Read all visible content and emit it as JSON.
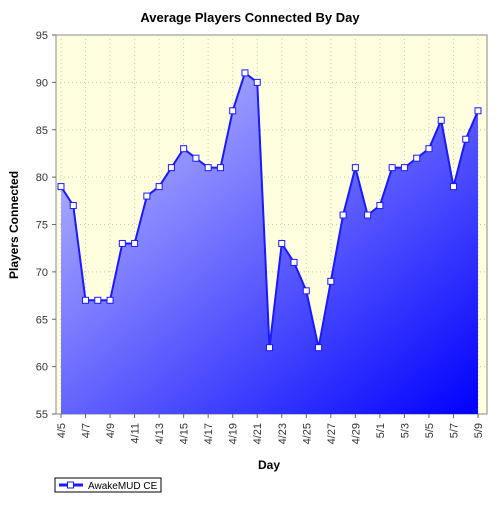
{
  "chart_data": {
    "type": "area",
    "title": "Average Players Connected By Day",
    "xlabel": "Day",
    "ylabel": "Players Connected",
    "ylim": [
      55,
      95
    ],
    "yticks": [
      55,
      60,
      65,
      70,
      75,
      80,
      85,
      90,
      95
    ],
    "grid": true,
    "legend_position": "bottom-left",
    "categories": [
      "4/5",
      "4/6",
      "4/7",
      "4/8",
      "4/9",
      "4/10",
      "4/11",
      "4/12",
      "4/13",
      "4/14",
      "4/15",
      "4/16",
      "4/17",
      "4/18",
      "4/19",
      "4/20",
      "4/21",
      "4/22",
      "4/23",
      "4/24",
      "4/25",
      "4/26",
      "4/27",
      "4/28",
      "4/29",
      "4/30",
      "5/1",
      "5/2",
      "5/3",
      "5/4",
      "5/5",
      "5/6",
      "5/7",
      "5/8",
      "5/9"
    ],
    "xtick_labels": [
      "4/5",
      "4/7",
      "4/9",
      "4/11",
      "4/13",
      "4/15",
      "4/17",
      "4/19",
      "4/21",
      "4/23",
      "4/25",
      "4/27",
      "4/29",
      "5/1",
      "5/3",
      "5/5",
      "5/7",
      "5/9"
    ],
    "series": [
      {
        "name": "AwakeMUD CE",
        "values": [
          79,
          77,
          67,
          67,
          67,
          73,
          73,
          78,
          79,
          81,
          83,
          82,
          81,
          81,
          87,
          91,
          90,
          62,
          73,
          71,
          68,
          62,
          69,
          76,
          81,
          76,
          77,
          81,
          81,
          82,
          83,
          86,
          79,
          84,
          87
        ]
      }
    ],
    "colors": {
      "line": "#1a1aff",
      "fill_top": "#c8c8ff",
      "fill_bottom": "#0000ff",
      "plot_bg": "#ffffe0",
      "marker_fill": "#ffffff"
    }
  }
}
